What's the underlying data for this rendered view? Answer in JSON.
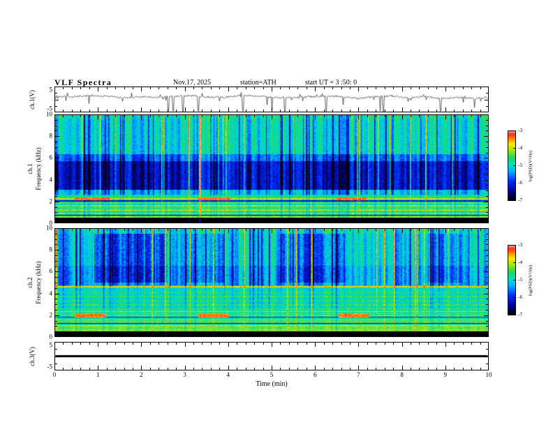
{
  "header": {
    "title": "VLF  Spectra",
    "date": "Nov.17, 2025",
    "station": "station=ATH",
    "start_ut": "start UT =  3 :50: 0"
  },
  "axes": {
    "x": {
      "label": "Time (min)",
      "min": 0,
      "max": 10,
      "ticks": [
        0,
        1,
        2,
        3,
        4,
        5,
        6,
        7,
        8,
        9,
        10
      ]
    },
    "freq": {
      "min": 0,
      "max": 10,
      "ticks": [
        10,
        8,
        6,
        4,
        2,
        0
      ]
    },
    "volts": {
      "min": -5,
      "max": 5,
      "ticks": [
        5,
        -5
      ]
    }
  },
  "labels": {
    "ch1_wave": "ch.1(V)",
    "ch1_spec_line1": "ch.1",
    "ch1_spec_line2": "Frequency (kHz)",
    "ch2_spec_line1": "ch.2",
    "ch2_spec_line2": "Frequency (kHz)",
    "ch3_wave": "ch.3(V)"
  },
  "colorbar": {
    "label": "log(PSD)(V²/Hz)",
    "min": -7,
    "max": -3,
    "ticks": [
      -3,
      -4,
      -5,
      -6,
      -7
    ],
    "stops": [
      [
        0,
        "#000000"
      ],
      [
        0.12,
        "#000090"
      ],
      [
        0.28,
        "#0030ff"
      ],
      [
        0.42,
        "#00b4ff"
      ],
      [
        0.52,
        "#00e0c0"
      ],
      [
        0.62,
        "#20d860"
      ],
      [
        0.72,
        "#a0e800"
      ],
      [
        0.82,
        "#ffe800"
      ],
      [
        0.9,
        "#ff8000"
      ],
      [
        0.96,
        "#ff3020"
      ],
      [
        1,
        "#ff9090"
      ]
    ]
  },
  "chart_data": [
    {
      "type": "line",
      "name": "ch1_waveform",
      "ylabel": "ch.1(V)",
      "ylim": [
        -5,
        5
      ],
      "xlim": [
        0,
        10
      ],
      "description": "Broadband noisy VLF time series hovering near +1 V with dense impulsive downward sferic spikes reaching -5 V",
      "baseline": 1.1,
      "wander": 0.7,
      "noise_amp": 0.35,
      "spike_prob": 0.05,
      "spikes_t": [
        2.6,
        2.72,
        2.95,
        3.3,
        4.33,
        5.0,
        5.3,
        6.25,
        7.5,
        7.58,
        8.9
      ],
      "seed": 42,
      "line_width": 0.6
    },
    {
      "type": "heatmap",
      "name": "ch1_spectrogram",
      "ylabel": "ch.1 Frequency (kHz)",
      "xlim": [
        0,
        10
      ],
      "ylim": [
        0,
        10
      ],
      "zlim": [
        -7,
        -3
      ],
      "zlabel": "log(PSD)(V²/Hz)",
      "description": "Spectrogram: cyan-green background (~-5), quiet blue band 3-5.8 kHz, dense vertical sferic streaks, harmonic yellow-green lines below 2.5 kHz, black band below 0.4 kHz, red emission patches near 2.2 kHz",
      "base_profile": [
        {
          "f0": 9.65,
          "f1": 10.01,
          "v": -4.9
        },
        {
          "f0": 6.35,
          "f1": 9.65,
          "v": -5.05
        },
        {
          "f0": 5.75,
          "f1": 6.35,
          "v": -5.7
        },
        {
          "f0": 3.05,
          "f1": 5.75,
          "v": -6.3
        },
        {
          "f0": 2.55,
          "f1": 3.05,
          "v": -5.3
        },
        {
          "f0": 0.4,
          "f1": 2.55,
          "v": -5.0
        },
        {
          "f0": -0.01,
          "f1": 0.4,
          "v": -7.2
        }
      ],
      "lines": [
        {
          "f": 0.5,
          "w": 0.06,
          "v": -4.1
        },
        {
          "f": 0.65,
          "w": 0.04,
          "v": -6.6
        },
        {
          "f": 0.8,
          "w": 0.06,
          "v": -4.2
        },
        {
          "f": 1.0,
          "w": 0.05,
          "v": -4.6
        },
        {
          "f": 1.15,
          "w": 0.06,
          "v": -4.1
        },
        {
          "f": 1.35,
          "w": 0.05,
          "v": -4.5
        },
        {
          "f": 1.55,
          "w": 0.06,
          "v": -4.15
        },
        {
          "f": 1.8,
          "w": 0.05,
          "v": -4.4
        },
        {
          "f": 2.0,
          "w": 0.04,
          "v": -6.2
        },
        {
          "f": 2.2,
          "w": 0.07,
          "v": -4.0
        },
        {
          "f": 2.4,
          "w": 0.05,
          "v": -4.6
        }
      ],
      "red_segments": [
        {
          "t0": 0.45,
          "t1": 1.25,
          "f": 2.2,
          "w": 0.12,
          "v": -3.3
        },
        {
          "t0": 3.3,
          "t1": 4.05,
          "f": 2.2,
          "w": 0.12,
          "v": -3.3
        },
        {
          "t0": 6.5,
          "t1": 7.2,
          "f": 2.2,
          "w": 0.12,
          "v": -3.35
        }
      ],
      "streaks": [
        {
          "fmin": 2.55,
          "fmax": 10.01,
          "w": 0.92
        },
        {
          "fmin": 0.0,
          "fmax": 2.55,
          "w": 0.3
        }
      ],
      "blue_patches": [],
      "noise": 0.3,
      "seed": 7
    },
    {
      "type": "heatmap",
      "name": "ch2_spectrogram",
      "ylabel": "ch.2 Frequency (kHz)",
      "xlim": [
        0,
        10
      ],
      "ylim": [
        0,
        10
      ],
      "zlim": [
        -7,
        -3
      ],
      "zlabel": "log(PSD)(V²/Hz)",
      "description": "Spectrogram: greener than ch.1, strong orange line near 4.6 kHz, many yellow harmonic lines below 2.5 kHz, blue patchy columns above 5 kHz, black band below 0.4 kHz, red emission patches near 1.9 kHz",
      "base_profile": [
        {
          "f0": 9.6,
          "f1": 10.01,
          "v": -4.95
        },
        {
          "f0": 6.55,
          "f1": 9.6,
          "v": -5.1
        },
        {
          "f0": 4.75,
          "f1": 6.55,
          "v": -5.35
        },
        {
          "f0": 2.6,
          "f1": 4.75,
          "v": -4.95
        },
        {
          "f0": 0.4,
          "f1": 2.6,
          "v": -4.75
        },
        {
          "f0": -0.01,
          "f1": 0.4,
          "v": -7.2
        }
      ],
      "lines": [
        {
          "f": 0.55,
          "w": 0.05,
          "v": -4.0
        },
        {
          "f": 0.75,
          "w": 0.05,
          "v": -4.2
        },
        {
          "f": 0.95,
          "w": 0.05,
          "v": -3.9
        },
        {
          "f": 1.15,
          "w": 0.03,
          "v": -6.3
        },
        {
          "f": 1.3,
          "w": 0.05,
          "v": -4.05
        },
        {
          "f": 1.5,
          "w": 0.05,
          "v": -3.95
        },
        {
          "f": 1.75,
          "w": 0.03,
          "v": -6.0
        },
        {
          "f": 1.9,
          "w": 0.06,
          "v": -4.0
        },
        {
          "f": 2.1,
          "w": 0.05,
          "v": -4.3
        },
        {
          "f": 2.3,
          "w": 0.05,
          "v": -3.95
        },
        {
          "f": 2.5,
          "w": 0.05,
          "v": -4.5
        },
        {
          "f": 2.9,
          "w": 0.05,
          "v": -4.5
        },
        {
          "f": 3.3,
          "w": 0.05,
          "v": -4.6
        },
        {
          "f": 3.7,
          "w": 0.05,
          "v": -4.55
        },
        {
          "f": 4.1,
          "w": 0.05,
          "v": -4.65
        },
        {
          "f": 4.62,
          "w": 0.08,
          "v": -3.75
        }
      ],
      "red_segments": [
        {
          "t0": 0.45,
          "t1": 1.15,
          "f": 1.9,
          "w": 0.14,
          "v": -3.3
        },
        {
          "t0": 3.3,
          "t1": 4.0,
          "f": 1.9,
          "w": 0.14,
          "v": -3.3
        },
        {
          "t0": 6.55,
          "t1": 7.25,
          "f": 1.9,
          "w": 0.14,
          "v": -3.35
        }
      ],
      "streaks": [
        {
          "fmin": 4.7,
          "fmax": 10.01,
          "w": 0.95
        },
        {
          "fmin": 2.6,
          "fmax": 4.7,
          "w": 0.4
        },
        {
          "fmin": 0.0,
          "fmax": 2.6,
          "w": 0.25
        }
      ],
      "blue_patches": [
        {
          "t0": 0.9,
          "t1": 2.6,
          "f0": 5.0,
          "f1": 9.6,
          "dv": -0.85
        },
        {
          "t0": 3.0,
          "t1": 3.9,
          "f0": 5.0,
          "f1": 9.6,
          "dv": -0.6
        },
        {
          "t0": 5.2,
          "t1": 6.7,
          "f0": 5.0,
          "f1": 9.6,
          "dv": -0.75
        },
        {
          "t0": 8.5,
          "t1": 9.4,
          "f0": 5.0,
          "f1": 9.6,
          "dv": -0.5
        }
      ],
      "noise": 0.3,
      "seed": 13
    },
    {
      "type": "line",
      "name": "ch3_waveform",
      "ylabel": "ch.3(V)",
      "ylim": [
        -5,
        5
      ],
      "xlim": [
        0,
        10
      ],
      "description": "Flat thick line at 0 V (channel inactive)",
      "baseline": 0,
      "wander": 0,
      "noise_amp": 0,
      "spike_prob": 0,
      "spikes_t": [],
      "seed": 1,
      "line_width": 2.8
    }
  ]
}
